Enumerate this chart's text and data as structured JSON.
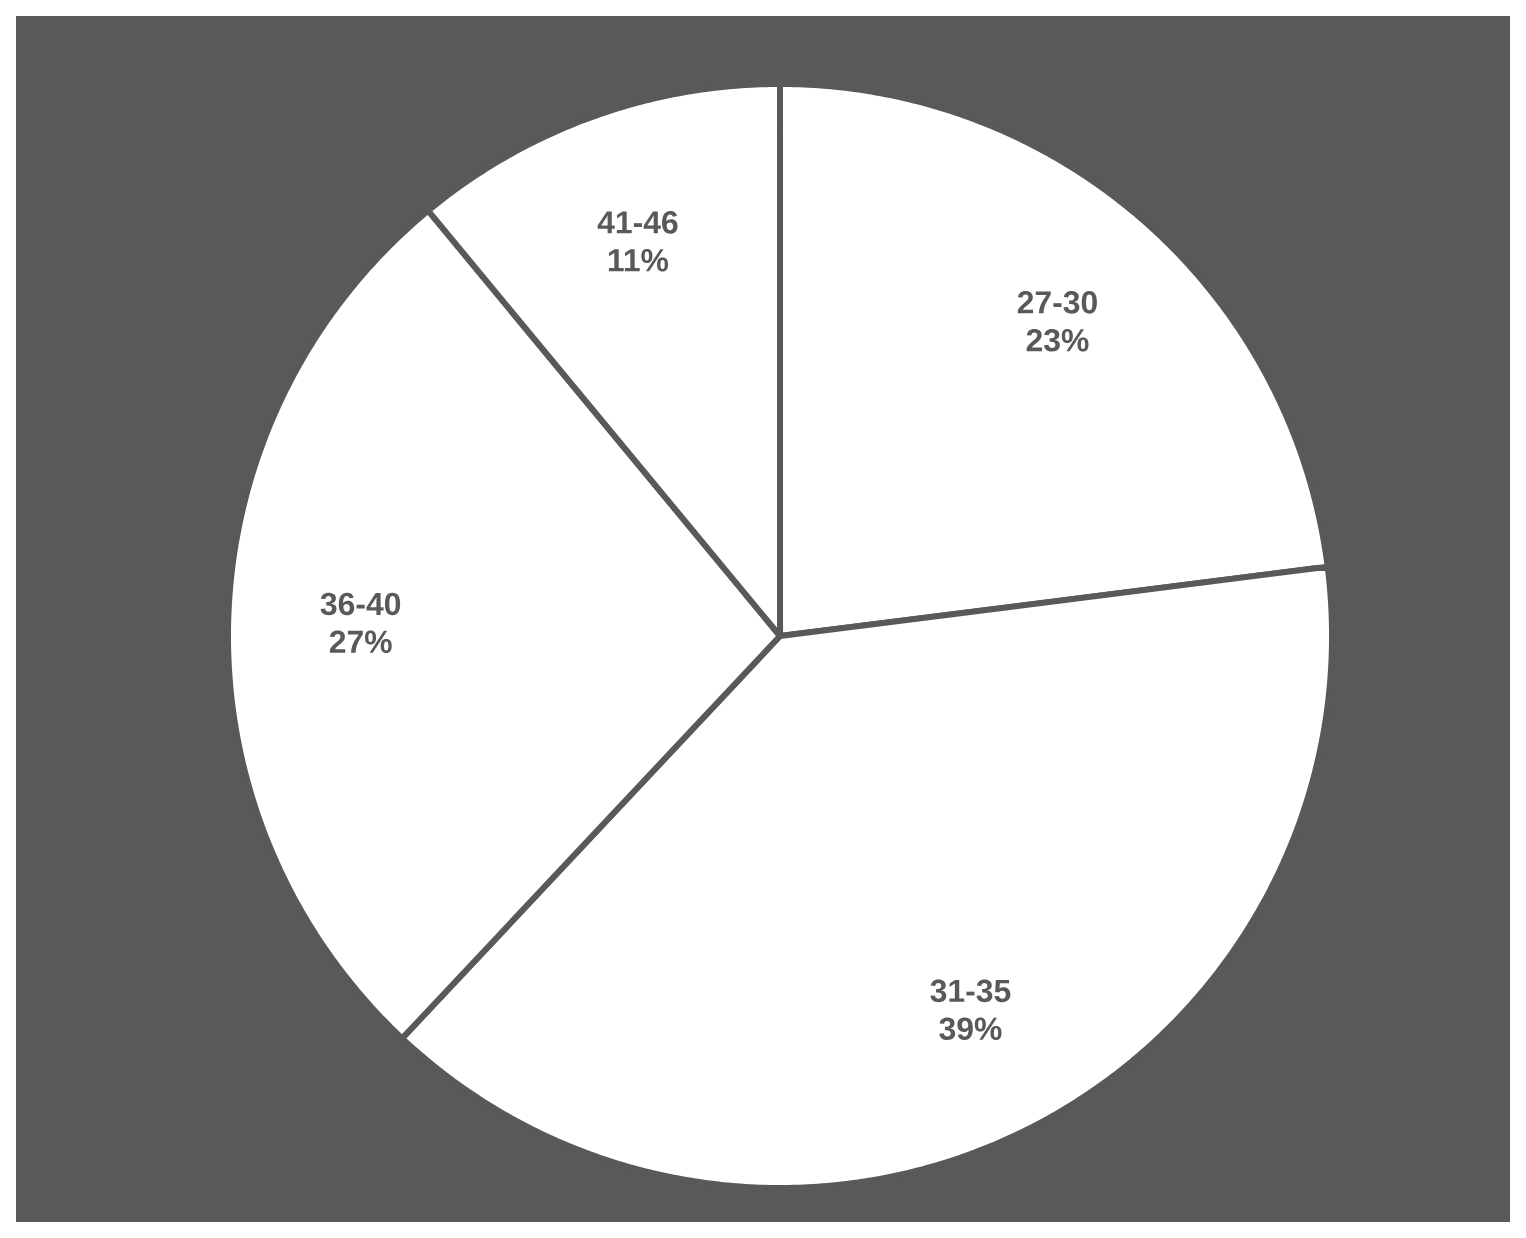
{
  "chart_data": {
    "type": "pie",
    "categories": [
      "27-30",
      "31-35",
      "36-40",
      "41-46"
    ],
    "values": [
      23,
      39,
      27,
      11
    ],
    "value_labels": [
      "23%",
      "39%",
      "27%",
      "11%"
    ],
    "colors": [
      "#ffffff",
      "#ffffff",
      "#ffffff",
      "#ffffff"
    ]
  }
}
